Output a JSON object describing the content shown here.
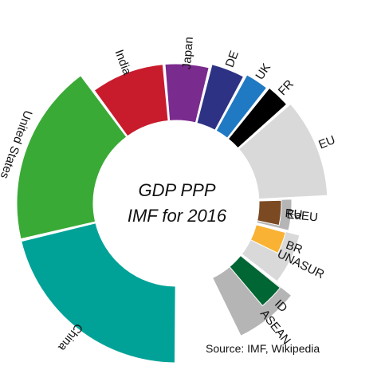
{
  "chart_data": {
    "type": "pie",
    "title_line1": "GDP PPP",
    "title_line2": "IMF for 2016",
    "countries": [
      {
        "label": "China",
        "value": 21.3,
        "color": "#00a297"
      },
      {
        "label": "United States",
        "value": 18.6,
        "color": "#3aaa36"
      },
      {
        "label": "India",
        "value": 8.7,
        "color": "#c81c2d"
      },
      {
        "label": "Japan",
        "value": 5.3,
        "color": "#7a2b8e"
      },
      {
        "label": "DE",
        "value": 4.0,
        "color": "#2e3285"
      },
      {
        "label": "UK",
        "value": 2.8,
        "color": "#2079c3"
      },
      {
        "label": "FR",
        "value": 2.8,
        "color": "#000000"
      }
    ],
    "blocs": [
      {
        "label": "EU",
        "value": 20.4,
        "color": "#d9d9d9"
      },
      {
        "label": "EaEU",
        "value": 4.6,
        "color": "#b5b5b5"
      },
      {
        "label": "UNASUR",
        "value": 6.7,
        "color": "#d9d9d9"
      },
      {
        "label": "ASEAN",
        "value": 7.3,
        "color": "#b5b5b5"
      }
    ],
    "bloc_members": [
      {
        "label": "RU",
        "value": 3.8,
        "color": "#7b4a22"
      },
      {
        "label": "BR",
        "value": 3.1,
        "color": "#f9b233"
      },
      {
        "label": "ID",
        "value": 3.0,
        "color": "#006633"
      }
    ]
  },
  "source": "Source: IMF, Wikipedia"
}
